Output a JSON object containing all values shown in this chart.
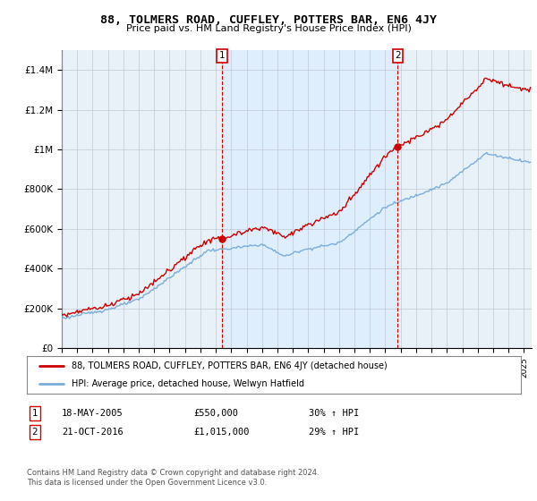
{
  "title": "88, TOLMERS ROAD, CUFFLEY, POTTERS BAR, EN6 4JY",
  "subtitle": "Price paid vs. HM Land Registry's House Price Index (HPI)",
  "ylabel_ticks": [
    "£0",
    "£200K",
    "£400K",
    "£600K",
    "£800K",
    "£1M",
    "£1.2M",
    "£1.4M"
  ],
  "ytick_values": [
    0,
    200000,
    400000,
    600000,
    800000,
    1000000,
    1200000,
    1400000
  ],
  "ylim": [
    0,
    1500000
  ],
  "xlim_start": 1995,
  "xlim_end": 2025.5,
  "sale1_date_x": 2005.38,
  "sale1_price": 550000,
  "sale2_date_x": 2016.81,
  "sale2_price": 1015000,
  "legend_line1": "88, TOLMERS ROAD, CUFFLEY, POTTERS BAR, EN6 4JY (detached house)",
  "legend_line2": "HPI: Average price, detached house, Welwyn Hatfield",
  "footer1": "Contains HM Land Registry data © Crown copyright and database right 2024.",
  "footer2": "This data is licensed under the Open Government Licence v3.0.",
  "hpi_color": "#7aaddc",
  "price_color": "#cc0000",
  "shade_color": "#ddeeff",
  "plot_bg": "#e8f0f8",
  "grid_color": "#c0c8d4"
}
